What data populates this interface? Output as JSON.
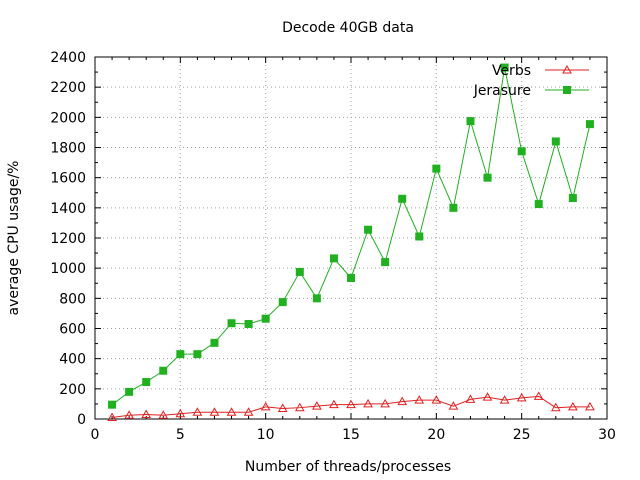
{
  "chart_data": {
    "type": "line",
    "title": "Decode 40GB data",
    "xlabel": "Number of threads/processes",
    "ylabel": "average CPU usage/%",
    "xlim": [
      0,
      30
    ],
    "ylim": [
      0,
      2400
    ],
    "xticks": [
      0,
      5,
      10,
      15,
      20,
      25,
      30
    ],
    "yticks": [
      0,
      200,
      400,
      600,
      800,
      1000,
      1200,
      1400,
      1600,
      1800,
      2000,
      2200,
      2400
    ],
    "grid": true,
    "legend_position": "top-right",
    "x": [
      1,
      2,
      3,
      4,
      5,
      6,
      7,
      8,
      9,
      10,
      11,
      12,
      13,
      14,
      15,
      16,
      17,
      18,
      19,
      20,
      21,
      22,
      23,
      24,
      25,
      26,
      27,
      28,
      29
    ],
    "series": [
      {
        "name": "Verbs",
        "color": "#e02020",
        "marker": "triangle",
        "values": [
          10,
          25,
          30,
          25,
          35,
          45,
          45,
          45,
          45,
          80,
          70,
          75,
          85,
          95,
          95,
          100,
          100,
          115,
          125,
          125,
          85,
          130,
          145,
          125,
          140,
          150,
          75,
          80,
          80
        ]
      },
      {
        "name": "Jerasure",
        "color": "#20b020",
        "marker": "square",
        "values": [
          95,
          180,
          245,
          320,
          430,
          430,
          505,
          635,
          630,
          665,
          775,
          975,
          800,
          1065,
          935,
          1255,
          1040,
          1460,
          1210,
          1660,
          1400,
          1975,
          1600,
          2330,
          1775,
          1425,
          1840,
          1465,
          1955
        ]
      }
    ]
  }
}
